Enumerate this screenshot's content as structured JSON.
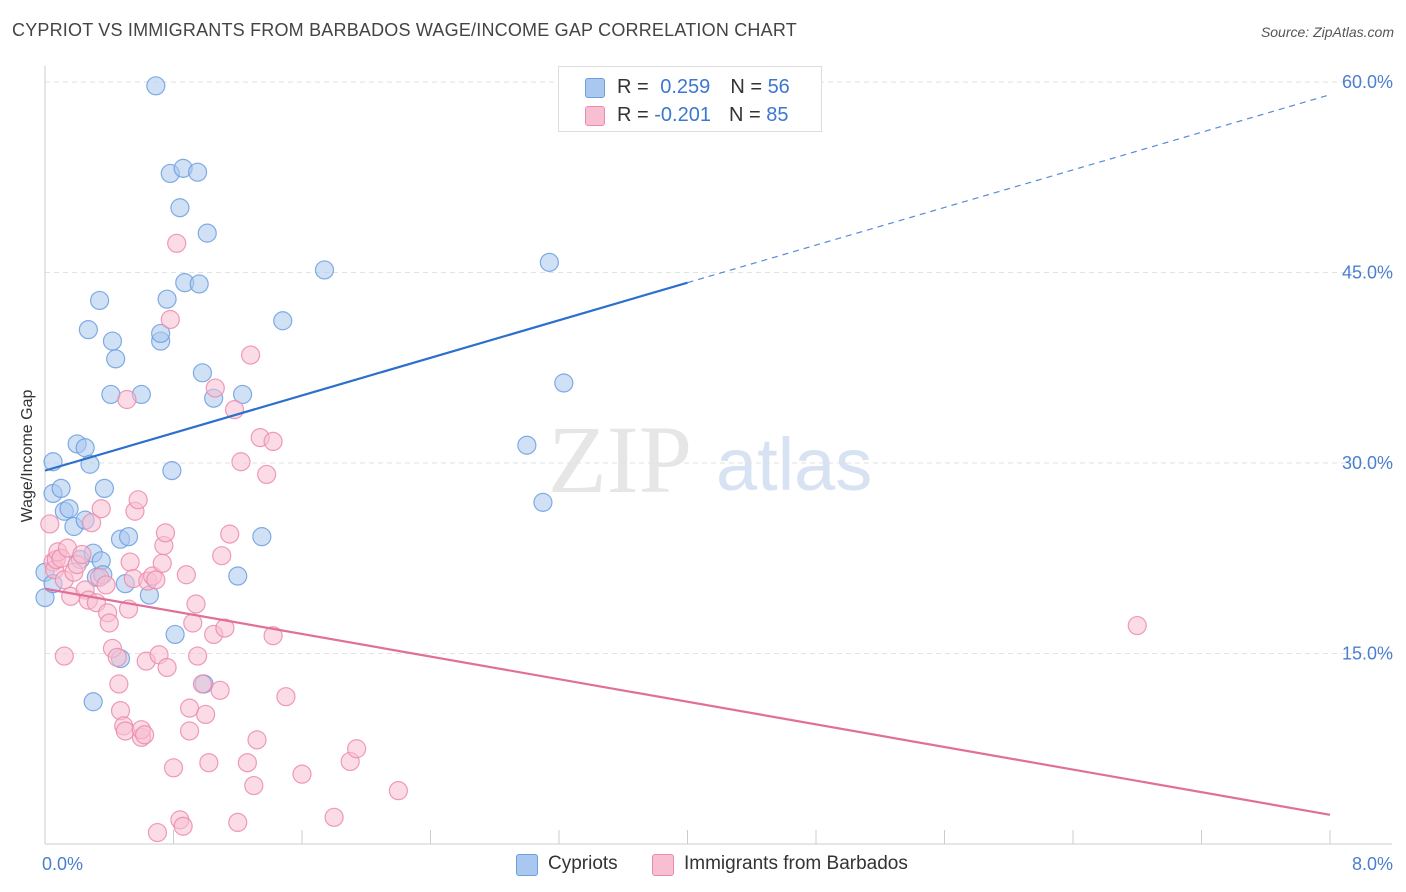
{
  "title": "CYPRIOT VS IMMIGRANTS FROM BARBADOS WAGE/INCOME GAP CORRELATION CHART",
  "source": "Source: ZipAtlas.com",
  "watermark": {
    "zip": "ZIP",
    "atlas": "atlas"
  },
  "colors": {
    "blue_fill": "#aac8ef",
    "blue_stroke": "#6c9ee0",
    "blue_line": "#2d6fcc",
    "pink_fill": "#f7bfd1",
    "pink_stroke": "#ec8aab",
    "pink_line": "#e0709a",
    "grid": "#e2e2e2",
    "tick_label": "#4a7fd0"
  },
  "stats": {
    "blue": {
      "r_label": "R = ",
      "r_value": "0.259",
      "n_label": "N = ",
      "n_value": "56"
    },
    "pink": {
      "r_label": "R = ",
      "r_value": "-0.201",
      "n_label": "N = ",
      "n_value": "85"
    }
  },
  "chart_data": {
    "type": "scatter",
    "xlabel": "",
    "ylabel": "Wage/Income Gap",
    "xlim": [
      0,
      8
    ],
    "ylim": [
      0,
      60
    ],
    "x_tick_labels": [
      {
        "value": 0,
        "label": "0.0%"
      },
      {
        "value": 8,
        "label": "8.0%"
      }
    ],
    "y_tick_labels": [
      {
        "value": 15,
        "label": "15.0%"
      },
      {
        "value": 30,
        "label": "30.0%"
      },
      {
        "value": 45,
        "label": "45.0%"
      },
      {
        "value": 60,
        "label": "60.0%"
      }
    ],
    "grid": true,
    "legend_position": "bottom",
    "series": [
      {
        "name": "Cypriots",
        "trend": {
          "x0": 0.0,
          "y0": 29.4,
          "x1": 4.0,
          "y1": 44.2,
          "dash_to_x": 8.0,
          "dash_to_y": 59.0
        },
        "points": [
          [
            0.05,
            30.1
          ],
          [
            0.05,
            27.6
          ],
          [
            0.1,
            28.0
          ],
          [
            0.12,
            26.2
          ],
          [
            0.15,
            26.4
          ],
          [
            0.18,
            25.0
          ],
          [
            0.2,
            31.5
          ],
          [
            0.25,
            31.2
          ],
          [
            0.28,
            29.9
          ],
          [
            0.22,
            22.4
          ],
          [
            0.3,
            22.9
          ],
          [
            0.32,
            21.0
          ],
          [
            0.35,
            22.3
          ],
          [
            0.36,
            21.2
          ],
          [
            0.37,
            28.0
          ],
          [
            0.0,
            19.4
          ],
          [
            0.0,
            21.4
          ],
          [
            0.25,
            25.5
          ],
          [
            0.27,
            40.5
          ],
          [
            0.34,
            42.8
          ],
          [
            0.42,
            39.6
          ],
          [
            0.44,
            38.2
          ],
          [
            0.41,
            35.4
          ],
          [
            0.47,
            24.0
          ],
          [
            0.5,
            20.5
          ],
          [
            0.52,
            24.2
          ],
          [
            0.6,
            35.4
          ],
          [
            0.65,
            19.6
          ],
          [
            0.69,
            59.7
          ],
          [
            0.72,
            39.6
          ],
          [
            0.72,
            40.2
          ],
          [
            0.76,
            42.9
          ],
          [
            0.78,
            52.8
          ],
          [
            0.79,
            29.4
          ],
          [
            0.81,
            16.5
          ],
          [
            0.84,
            50.1
          ],
          [
            0.86,
            53.2
          ],
          [
            0.87,
            44.2
          ],
          [
            0.95,
            52.9
          ],
          [
            0.96,
            44.1
          ],
          [
            0.98,
            37.1
          ],
          [
            0.99,
            12.6
          ],
          [
            1.01,
            48.1
          ],
          [
            1.05,
            35.1
          ],
          [
            1.2,
            21.1
          ],
          [
            1.23,
            35.4
          ],
          [
            1.35,
            24.2
          ],
          [
            1.48,
            41.2
          ],
          [
            1.74,
            45.2
          ],
          [
            3.0,
            31.4
          ],
          [
            3.1,
            26.9
          ],
          [
            3.14,
            45.8
          ],
          [
            3.23,
            36.3
          ],
          [
            0.3,
            11.2
          ],
          [
            0.47,
            14.6
          ],
          [
            0.05,
            20.5
          ]
        ]
      },
      {
        "name": "Immigrants from Barbados",
        "trend": {
          "x0": 0.0,
          "y0": 20.1,
          "x1": 8.0,
          "y1": 2.3
        },
        "points": [
          [
            0.03,
            25.2
          ],
          [
            0.05,
            22.2
          ],
          [
            0.06,
            21.6
          ],
          [
            0.07,
            22.4
          ],
          [
            0.08,
            23.0
          ],
          [
            0.1,
            22.5
          ],
          [
            0.12,
            20.8
          ],
          [
            0.14,
            23.3
          ],
          [
            0.16,
            19.5
          ],
          [
            0.18,
            21.4
          ],
          [
            0.2,
            22.0
          ],
          [
            0.23,
            22.8
          ],
          [
            0.25,
            20.0
          ],
          [
            0.27,
            19.2
          ],
          [
            0.29,
            25.3
          ],
          [
            0.32,
            19.0
          ],
          [
            0.34,
            21.0
          ],
          [
            0.35,
            26.4
          ],
          [
            0.38,
            20.4
          ],
          [
            0.39,
            18.2
          ],
          [
            0.4,
            17.4
          ],
          [
            0.42,
            15.4
          ],
          [
            0.45,
            14.7
          ],
          [
            0.46,
            12.6
          ],
          [
            0.47,
            10.5
          ],
          [
            0.49,
            9.3
          ],
          [
            0.5,
            8.9
          ],
          [
            0.51,
            35.0
          ],
          [
            0.52,
            18.5
          ],
          [
            0.53,
            22.2
          ],
          [
            0.55,
            20.9
          ],
          [
            0.56,
            26.2
          ],
          [
            0.58,
            27.1
          ],
          [
            0.6,
            8.4
          ],
          [
            0.6,
            9.0
          ],
          [
            0.62,
            8.6
          ],
          [
            0.63,
            14.4
          ],
          [
            0.64,
            20.7
          ],
          [
            0.67,
            21.1
          ],
          [
            0.69,
            20.8
          ],
          [
            0.7,
            0.9
          ],
          [
            0.71,
            14.9
          ],
          [
            0.73,
            22.1
          ],
          [
            0.74,
            23.5
          ],
          [
            0.75,
            24.5
          ],
          [
            0.76,
            13.9
          ],
          [
            0.78,
            41.3
          ],
          [
            0.8,
            6.0
          ],
          [
            0.82,
            47.3
          ],
          [
            0.84,
            1.9
          ],
          [
            0.86,
            1.4
          ],
          [
            0.88,
            21.2
          ],
          [
            0.9,
            10.7
          ],
          [
            0.9,
            8.9
          ],
          [
            0.92,
            17.4
          ],
          [
            0.94,
            18.9
          ],
          [
            0.95,
            14.8
          ],
          [
            0.98,
            12.6
          ],
          [
            1.0,
            10.2
          ],
          [
            1.02,
            6.4
          ],
          [
            1.05,
            16.5
          ],
          [
            1.06,
            35.9
          ],
          [
            1.09,
            12.1
          ],
          [
            1.1,
            22.7
          ],
          [
            1.12,
            17.0
          ],
          [
            1.15,
            24.4
          ],
          [
            1.18,
            34.2
          ],
          [
            1.2,
            1.7
          ],
          [
            1.22,
            30.1
          ],
          [
            1.26,
            6.4
          ],
          [
            1.28,
            38.5
          ],
          [
            1.3,
            4.6
          ],
          [
            1.32,
            8.2
          ],
          [
            1.34,
            32.0
          ],
          [
            1.38,
            29.1
          ],
          [
            1.42,
            31.7
          ],
          [
            1.42,
            16.4
          ],
          [
            1.5,
            11.6
          ],
          [
            1.6,
            5.5
          ],
          [
            1.8,
            2.1
          ],
          [
            1.9,
            6.5
          ],
          [
            1.94,
            7.5
          ],
          [
            2.2,
            4.2
          ],
          [
            6.8,
            17.2
          ],
          [
            0.12,
            14.8
          ]
        ]
      }
    ]
  },
  "legend": [
    {
      "key": "blue",
      "label": "Cypriots"
    },
    {
      "key": "pink",
      "label": "Immigrants from Barbados"
    }
  ]
}
